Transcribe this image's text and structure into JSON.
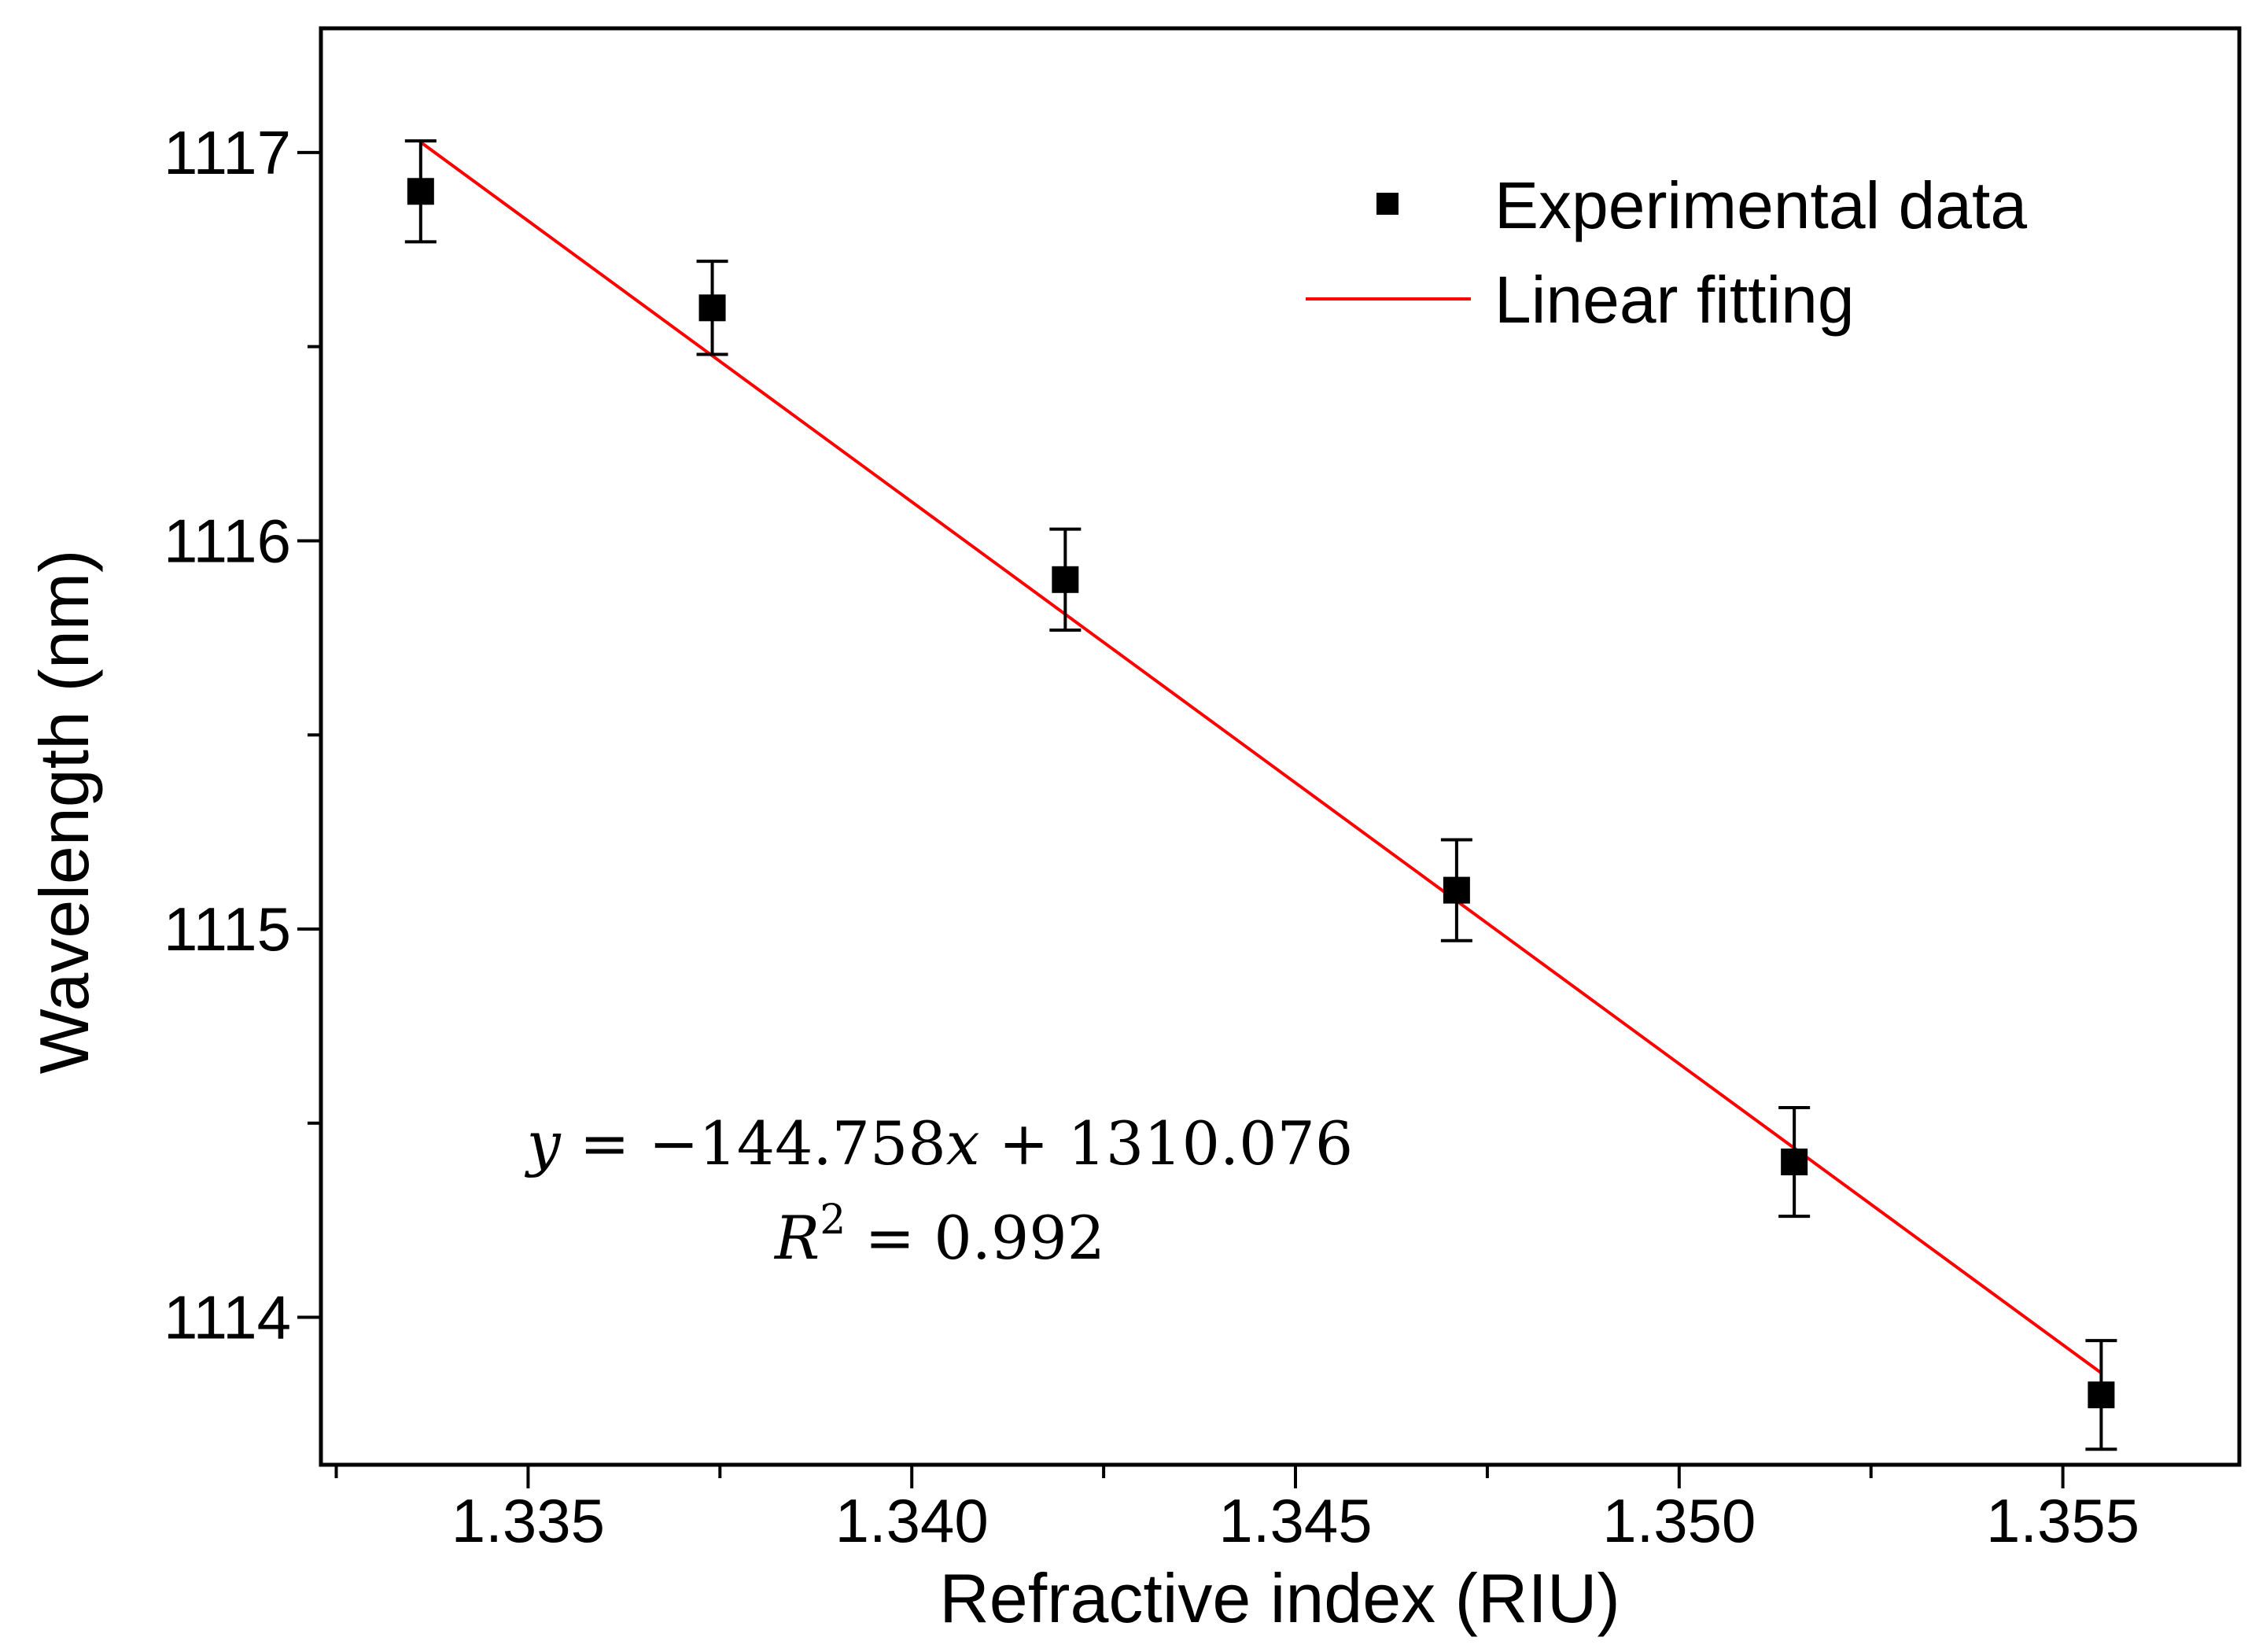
{
  "chart_data": {
    "type": "scatter",
    "title": "",
    "xlabel": "Refractive index (RIU)",
    "ylabel": "Wavelength (nm)",
    "xlim": [
      1.3323,
      1.3573
    ],
    "ylim": [
      1113.62,
      1117.32
    ],
    "x_ticks": [
      1.335,
      1.34,
      1.345,
      1.35,
      1.355
    ],
    "x_tick_labels": [
      "1.335",
      "1.340",
      "1.345",
      "1.350",
      "1.355"
    ],
    "x_minor_ticks": [
      1.3325,
      1.3375,
      1.3425,
      1.3475,
      1.3525,
      1.3575
    ],
    "y_ticks": [
      1114,
      1115,
      1116,
      1117
    ],
    "y_tick_labels": [
      "1114",
      "1115",
      "1116",
      "1117"
    ],
    "y_minor_ticks": [
      1114.5,
      1115.5,
      1116.5
    ],
    "grid": false,
    "legend_position": "top-right",
    "series": [
      {
        "name": "Experimental data",
        "kind": "scatter",
        "marker": "square",
        "color": "#000000",
        "x": [
          1.3336,
          1.3374,
          1.342,
          1.3471,
          1.3515,
          1.3555
        ],
        "y": [
          1116.9,
          1116.6,
          1115.9,
          1115.1,
          1114.4,
          1113.8
        ],
        "error": [
          0.13,
          0.12,
          0.13,
          0.13,
          0.14,
          0.14
        ]
      },
      {
        "name": "Linear fitting",
        "kind": "line",
        "color": "#ff0000",
        "slope": -144.758,
        "intercept": 1310.076,
        "x_range": [
          1.3336,
          1.3555
        ]
      }
    ],
    "annotations": {
      "equation_line1_y": "y",
      "equation_line1_rest": " = −144.758",
      "equation_line1_x": "x",
      "equation_line1_tail": " + 1310.076",
      "equation_line2_r": "R",
      "equation_line2_sup": "2",
      "equation_line2_rest": " = 0.992"
    }
  }
}
